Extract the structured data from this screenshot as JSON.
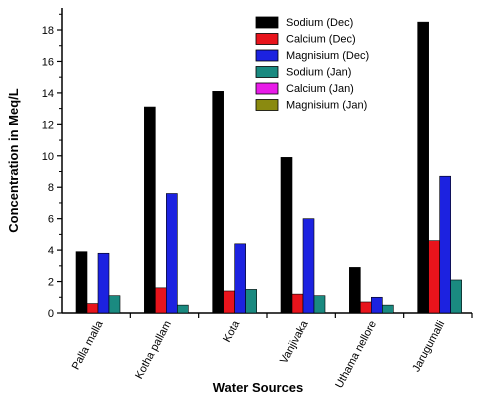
{
  "chart_data": {
    "type": "bar",
    "xlabel": "Water Sources",
    "ylabel": "Concentration in Meq/L",
    "ylim": [
      0,
      19.4
    ],
    "yticks": [
      0,
      2,
      4,
      6,
      8,
      10,
      12,
      14,
      16,
      18
    ],
    "grid": false,
    "legend_position": "top-right",
    "categories": [
      "Palla malla",
      "Kotha pallam",
      "Kota",
      "Vanjivaka",
      "Uthama nellore",
      "Jarugumalli"
    ],
    "series": [
      {
        "name": "Sodium (Dec)",
        "color": "#000000",
        "values": [
          3.9,
          13.1,
          14.1,
          9.9,
          2.9,
          18.5
        ]
      },
      {
        "name": "Calcium (Dec)",
        "color": "#e8141c",
        "values": [
          0.6,
          1.6,
          1.4,
          1.2,
          0.7,
          4.6
        ]
      },
      {
        "name": "Magnisium (Dec)",
        "color": "#1c22e0",
        "values": [
          3.8,
          7.6,
          4.4,
          6.0,
          1.0,
          8.7
        ]
      },
      {
        "name": "Sodium (Jan)",
        "color": "#1a8a80",
        "values": [
          1.1,
          0.5,
          1.5,
          1.1,
          0.5,
          2.1
        ]
      },
      {
        "name": "Calcium (Jan)",
        "color": "#e81ce8",
        "values": [
          0,
          0,
          0,
          0,
          0,
          0
        ]
      },
      {
        "name": "Magnisium (Jan)",
        "color": "#8a8a10",
        "values": [
          0,
          0,
          0,
          0,
          0,
          0
        ]
      }
    ]
  }
}
